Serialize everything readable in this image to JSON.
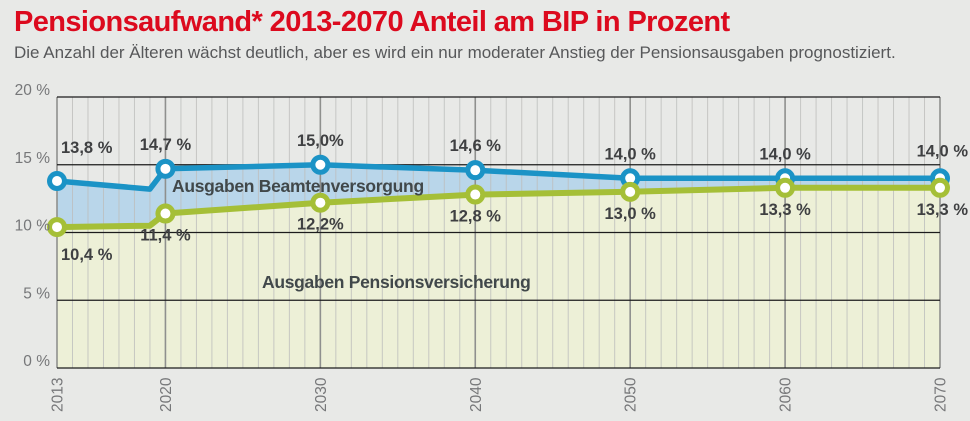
{
  "header": {
    "title": "Pensionsaufwand* 2013-2070 Anteil am BIP in Prozent",
    "subtitle": "Die Anzahl der Älteren wächst deutlich, aber es wird ein nur moderater Anstieg der Pensionsausgaben prognostiziert."
  },
  "colors": {
    "title_red": "#dc0a1e",
    "subtitle_gray": "#57585a",
    "background": "#e8e9e7",
    "blue_line": "#1b93c6",
    "blue_fill": "#b9d6ea",
    "green_line": "#a5bf37",
    "green_fill": "#edf0d7",
    "grid_minor": "#bdbebc",
    "grid_major": "#8f908e",
    "grid_horizontal": "#1c1c1c",
    "axis_label": "#767779",
    "data_label": "#3f4042",
    "series_label": "#41484a",
    "marker_fill": "#ffffff"
  },
  "chart_data": {
    "type": "area",
    "title": "Pensionsaufwand* 2013-2070 Anteil am BIP in Prozent",
    "xlabel": "",
    "ylabel": "Anteil am BIP in Prozent",
    "xlim": [
      2013,
      2070
    ],
    "ylim": [
      0,
      20
    ],
    "grid": "vertical minor line per year, horizontal line every 5 %",
    "legend_position": "labels inside filled areas",
    "x": [
      2013,
      2019,
      2020,
      2030,
      2040,
      2050,
      2060,
      2070
    ],
    "x_ticks": [
      {
        "value": 2013,
        "label": "2013"
      },
      {
        "value": 2020,
        "label": "2020"
      },
      {
        "value": 2030,
        "label": "2030"
      },
      {
        "value": 2040,
        "label": "2040"
      },
      {
        "value": 2050,
        "label": "2050"
      },
      {
        "value": 2060,
        "label": "2060"
      },
      {
        "value": 2070,
        "label": "2070"
      }
    ],
    "y_ticks": [
      {
        "value": 20,
        "label": "20 %"
      },
      {
        "value": 15,
        "label": "15 %"
      },
      {
        "value": 10,
        "label": "10 %"
      },
      {
        "value": 5,
        "label": "5 %"
      },
      {
        "value": 0,
        "label": "0 %"
      }
    ],
    "series": [
      {
        "name": "Ausgaben Beamtenversorgung",
        "color_key": "blue",
        "values": [
          13.8,
          13.2,
          14.7,
          15.0,
          14.6,
          14.0,
          14.0,
          14.0
        ],
        "point_labels": [
          "13,8 %",
          "",
          "14,7 %",
          "15,0%",
          "14,6 %",
          "14,0 %",
          "14,0 %",
          "14,0 %"
        ]
      },
      {
        "name": "Ausgaben Pensionsversicherung",
        "color_key": "green",
        "values": [
          10.4,
          10.5,
          11.4,
          12.2,
          12.8,
          13.0,
          13.3,
          13.3
        ],
        "point_labels": [
          "10,4 %",
          "",
          "11,4 %",
          "12,2%",
          "12,8 %",
          "13,0 %",
          "13,3 %",
          "13,3 %"
        ]
      }
    ]
  }
}
